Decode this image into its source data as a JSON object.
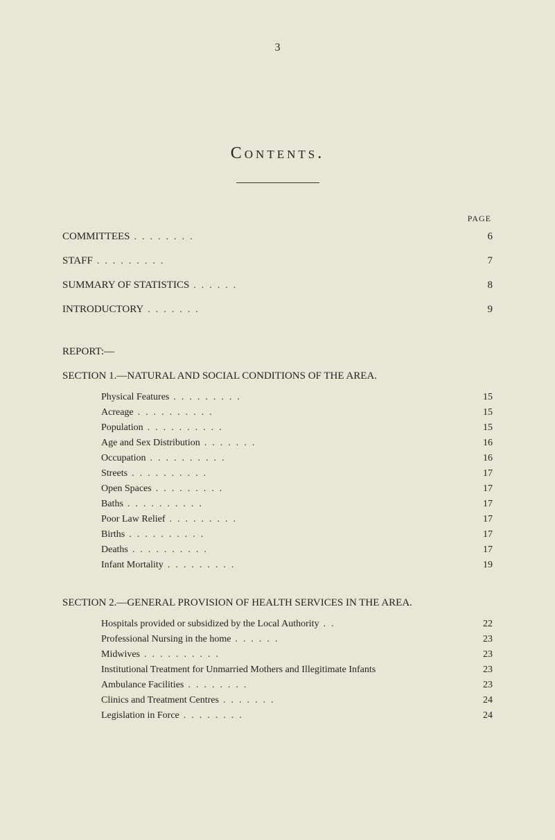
{
  "page_number": "3",
  "contents_title": "Contents.",
  "page_label": "PAGE",
  "report_label": "REPORT:—",
  "majors": [
    {
      "label": "COMMITTEES",
      "page": "6"
    },
    {
      "label": "STAFF",
      "page": "7"
    },
    {
      "label": "SUMMARY OF STATISTICS",
      "page": "8"
    },
    {
      "label": "INTRODUCTORY",
      "page": "9"
    }
  ],
  "section1": {
    "heading": "SECTION 1.—NATURAL AND SOCIAL CONDITIONS OF THE AREA.",
    "items": [
      {
        "label": "Physical Features",
        "page": "15"
      },
      {
        "label": "Acreage",
        "page": "15"
      },
      {
        "label": "Population",
        "page": "15"
      },
      {
        "label": "Age and Sex Distribution",
        "page": "16"
      },
      {
        "label": "Occupation",
        "page": "16"
      },
      {
        "label": "Streets",
        "page": "17"
      },
      {
        "label": "Open Spaces",
        "page": "17"
      },
      {
        "label": "Baths",
        "page": "17"
      },
      {
        "label": "Poor Law Relief",
        "page": "17"
      },
      {
        "label": "Births",
        "page": "17"
      },
      {
        "label": "Deaths",
        "page": "17"
      },
      {
        "label": "Infant Mortality",
        "page": "19"
      }
    ]
  },
  "section2": {
    "heading": "SECTION 2.—GENERAL PROVISION OF HEALTH SERVICES IN THE AREA.",
    "items": [
      {
        "label": "Hospitals provided or subsidized by the Local Authority",
        "page": "22"
      },
      {
        "label": "Professional Nursing in the home",
        "page": "23"
      },
      {
        "label": "Midwives",
        "page": "23"
      },
      {
        "label": "Institutional Treatment for Unmarried Mothers and Illegitimate Infants",
        "page": "23"
      },
      {
        "label": "Ambulance Facilities",
        "page": "23"
      },
      {
        "label": "Clinics and Treatment Centres",
        "page": "24"
      },
      {
        "label": "Legislation in Force",
        "page": "24"
      }
    ]
  },
  "style": {
    "background_color": "#e8e6d4",
    "text_color": "#222",
    "font_family": "Times New Roman"
  }
}
